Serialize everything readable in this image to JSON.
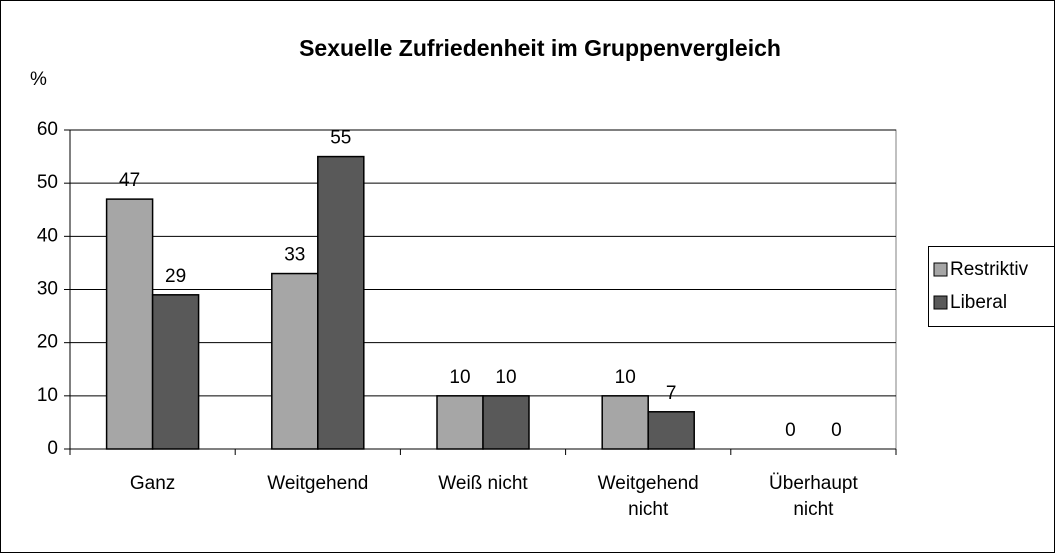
{
  "chart_data": {
    "type": "bar",
    "title": "Sexuelle Zufriedenheit im Gruppenvergleich",
    "y_label": "%",
    "categories": [
      "Ganz",
      "Weitgehend",
      "Weiß nicht",
      "Weitgehend\nnicht",
      "Überhaupt\nnicht"
    ],
    "series": [
      {
        "name": "Restriktiv",
        "color": "#a6a6a6",
        "values": [
          47,
          33,
          10,
          10,
          0
        ]
      },
      {
        "name": "Liberal",
        "color": "#595959",
        "values": [
          29,
          55,
          10,
          7,
          0
        ]
      }
    ],
    "ylim": [
      0,
      60
    ],
    "yticks": [
      0,
      10,
      20,
      30,
      40,
      50,
      60
    ],
    "grid": true,
    "legend": "right"
  }
}
